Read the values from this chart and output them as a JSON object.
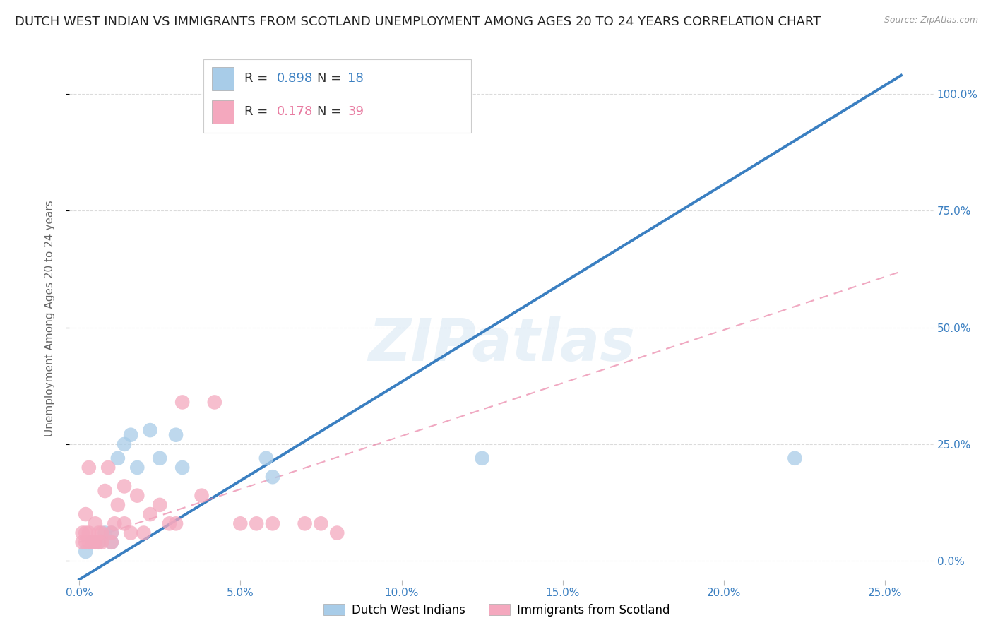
{
  "title": "DUTCH WEST INDIAN VS IMMIGRANTS FROM SCOTLAND UNEMPLOYMENT AMONG AGES 20 TO 24 YEARS CORRELATION CHART",
  "source": "Source: ZipAtlas.com",
  "ylabel": "Unemployment Among Ages 20 to 24 years",
  "x_ticks_labels": [
    "0.0%",
    "5.0%",
    "10.0%",
    "15.0%",
    "20.0%",
    "25.0%"
  ],
  "x_ticks": [
    0.0,
    0.05,
    0.1,
    0.15,
    0.2,
    0.25
  ],
  "y_ticks_labels": [
    "0.0%",
    "25.0%",
    "50.0%",
    "75.0%",
    "100.0%"
  ],
  "y_ticks": [
    0.0,
    0.25,
    0.5,
    0.75,
    1.0
  ],
  "xlim": [
    -0.003,
    0.265
  ],
  "ylim": [
    -0.04,
    1.08
  ],
  "blue_R": 0.898,
  "blue_N": 18,
  "pink_R": 0.178,
  "pink_N": 39,
  "blue_color": "#a8cce8",
  "pink_color": "#f4a8be",
  "blue_line_color": "#3a7fc1",
  "pink_line_color": "#e87aa0",
  "blue_scatter_x": [
    0.002,
    0.004,
    0.006,
    0.008,
    0.01,
    0.01,
    0.012,
    0.014,
    0.016,
    0.018,
    0.022,
    0.025,
    0.03,
    0.032,
    0.058,
    0.06,
    0.125,
    0.222
  ],
  "blue_scatter_y": [
    0.02,
    0.04,
    0.04,
    0.06,
    0.04,
    0.06,
    0.22,
    0.25,
    0.27,
    0.2,
    0.28,
    0.22,
    0.27,
    0.2,
    0.22,
    0.18,
    0.22,
    0.22
  ],
  "pink_scatter_x": [
    0.001,
    0.001,
    0.002,
    0.002,
    0.002,
    0.003,
    0.003,
    0.003,
    0.004,
    0.005,
    0.005,
    0.006,
    0.006,
    0.007,
    0.007,
    0.008,
    0.009,
    0.01,
    0.01,
    0.011,
    0.012,
    0.014,
    0.014,
    0.016,
    0.018,
    0.02,
    0.022,
    0.025,
    0.028,
    0.03,
    0.032,
    0.038,
    0.042,
    0.05,
    0.055,
    0.06,
    0.07,
    0.075,
    0.08
  ],
  "pink_scatter_y": [
    0.04,
    0.06,
    0.04,
    0.06,
    0.1,
    0.04,
    0.06,
    0.2,
    0.04,
    0.04,
    0.08,
    0.04,
    0.06,
    0.04,
    0.06,
    0.15,
    0.2,
    0.04,
    0.06,
    0.08,
    0.12,
    0.08,
    0.16,
    0.06,
    0.14,
    0.06,
    0.1,
    0.12,
    0.08,
    0.08,
    0.34,
    0.14,
    0.34,
    0.08,
    0.08,
    0.08,
    0.08,
    0.08,
    0.06
  ],
  "blue_line_x0": 0.0,
  "blue_line_x1": 0.255,
  "blue_line_y0": -0.04,
  "blue_line_y1": 1.04,
  "pink_line_x0": 0.0,
  "pink_line_x1": 0.255,
  "pink_line_y0": 0.04,
  "pink_line_y1": 0.62,
  "watermark_text": "ZIPatlas",
  "legend_label_blue": "Dutch West Indians",
  "legend_label_pink": "Immigrants from Scotland",
  "title_fontsize": 13,
  "axis_label_fontsize": 11,
  "tick_fontsize": 11,
  "background_color": "#ffffff",
  "grid_color": "#d8d8d8"
}
